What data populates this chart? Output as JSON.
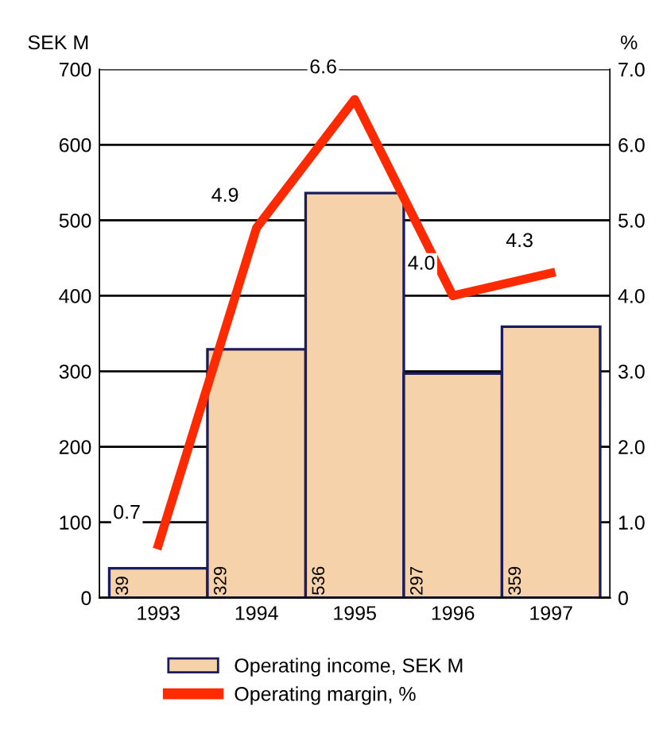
{
  "chart_data": {
    "type": "bar",
    "categories": [
      "1993",
      "1994",
      "1995",
      "1996",
      "1997"
    ],
    "ylabel": "SEK M",
    "y2label": "%",
    "series": [
      {
        "name": "Operating income, SEK M",
        "color": "#f6d2ab",
        "values": [
          39,
          329,
          536,
          297,
          359
        ]
      },
      {
        "name": "Operating margin, %",
        "type": "line",
        "axis": "y2",
        "color": "#ff2a00",
        "values": [
          0.7,
          4.9,
          6.6,
          4.0,
          4.3
        ],
        "value_labels": [
          "0.7",
          "4.9",
          "6.6",
          "4.0",
          "4.3"
        ]
      }
    ],
    "ylim": [
      0,
      700
    ],
    "yticks": [
      0,
      100,
      200,
      300,
      400,
      500,
      600,
      700
    ],
    "y2lim": [
      0,
      7
    ],
    "y2ticks": [
      0,
      {
        "value": 1,
        "label": "1.0"
      },
      {
        "value": 2,
        "label": "2.0"
      },
      {
        "value": 3,
        "label": "3.0"
      },
      {
        "value": 4,
        "label": "4.0"
      },
      {
        "value": 5,
        "label": "5.0"
      },
      {
        "value": 6,
        "label": "6.0"
      },
      {
        "value": 7,
        "label": "7.0"
      }
    ],
    "grid": "y",
    "legend": "bottom",
    "data_labels": true,
    "marker": "none",
    "line_style": "solid"
  }
}
